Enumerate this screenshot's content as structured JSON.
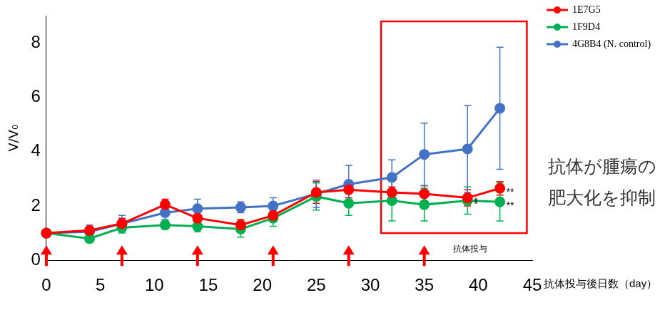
{
  "chart_data": {
    "type": "line",
    "x_label": "抗体投与後日数（day）",
    "y_label": "V/V₀",
    "x": [
      0,
      4,
      7,
      11,
      14,
      18,
      21,
      25,
      28,
      32,
      35,
      39,
      42
    ],
    "series": [
      {
        "name": "1E7G5",
        "color": "#ff0000",
        "marker": "circle",
        "values": [
          1.0,
          1.1,
          1.35,
          2.05,
          1.55,
          1.3,
          1.65,
          2.5,
          2.6,
          2.5,
          2.45,
          2.3,
          2.65
        ],
        "errors": [
          0.05,
          0.15,
          0.2,
          0.2,
          0.15,
          0.2,
          0.2,
          0.4,
          0.3,
          0.2,
          0.3,
          0.3,
          0.25
        ]
      },
      {
        "name": "1F9D4",
        "color": "#00b050",
        "marker": "circle",
        "values": [
          1.0,
          0.8,
          1.2,
          1.3,
          1.25,
          1.15,
          1.55,
          2.35,
          2.1,
          2.2,
          2.05,
          2.2,
          2.15
        ],
        "errors": [
          0.05,
          0.15,
          0.2,
          0.15,
          0.2,
          0.3,
          0.3,
          0.5,
          0.45,
          0.75,
          0.6,
          0.5,
          0.7
        ]
      },
      {
        "name": "4G8B4 (N. control)",
        "color": "#4472c4",
        "marker": "circle",
        "values": [
          1.0,
          1.05,
          1.35,
          1.75,
          1.9,
          1.95,
          2.0,
          2.45,
          2.8,
          3.05,
          3.9,
          4.1,
          5.6
        ],
        "errors": [
          0.1,
          0.25,
          0.3,
          0.25,
          0.35,
          0.2,
          0.3,
          0.5,
          0.7,
          0.65,
          1.15,
          1.6,
          2.25
        ]
      }
    ],
    "xlim": [
      0,
      45
    ],
    "xticks": [
      0,
      5,
      10,
      15,
      20,
      25,
      30,
      35,
      40,
      45
    ],
    "ylim": [
      0,
      9
    ],
    "yticks": [
      0,
      2,
      4,
      6,
      8
    ],
    "grid": false,
    "legend": "top right",
    "dosing_days": [
      0,
      7,
      14,
      21,
      28,
      35
    ],
    "dosing_label": "抗体投与",
    "highlight_box": {
      "x": [
        31,
        44.5
      ],
      "y": [
        1,
        8.8
      ]
    },
    "annotation": "抗体が腫瘍の肥大化を抑制",
    "significance": [
      {
        "series": "1E7G5",
        "x": 39,
        "label": "*"
      },
      {
        "series": "1F9D4",
        "x": 39,
        "label": "*"
      },
      {
        "series": "1E7G5",
        "x": 42,
        "label": "**"
      },
      {
        "series": "1F9D4",
        "x": 42,
        "label": "**"
      }
    ]
  }
}
